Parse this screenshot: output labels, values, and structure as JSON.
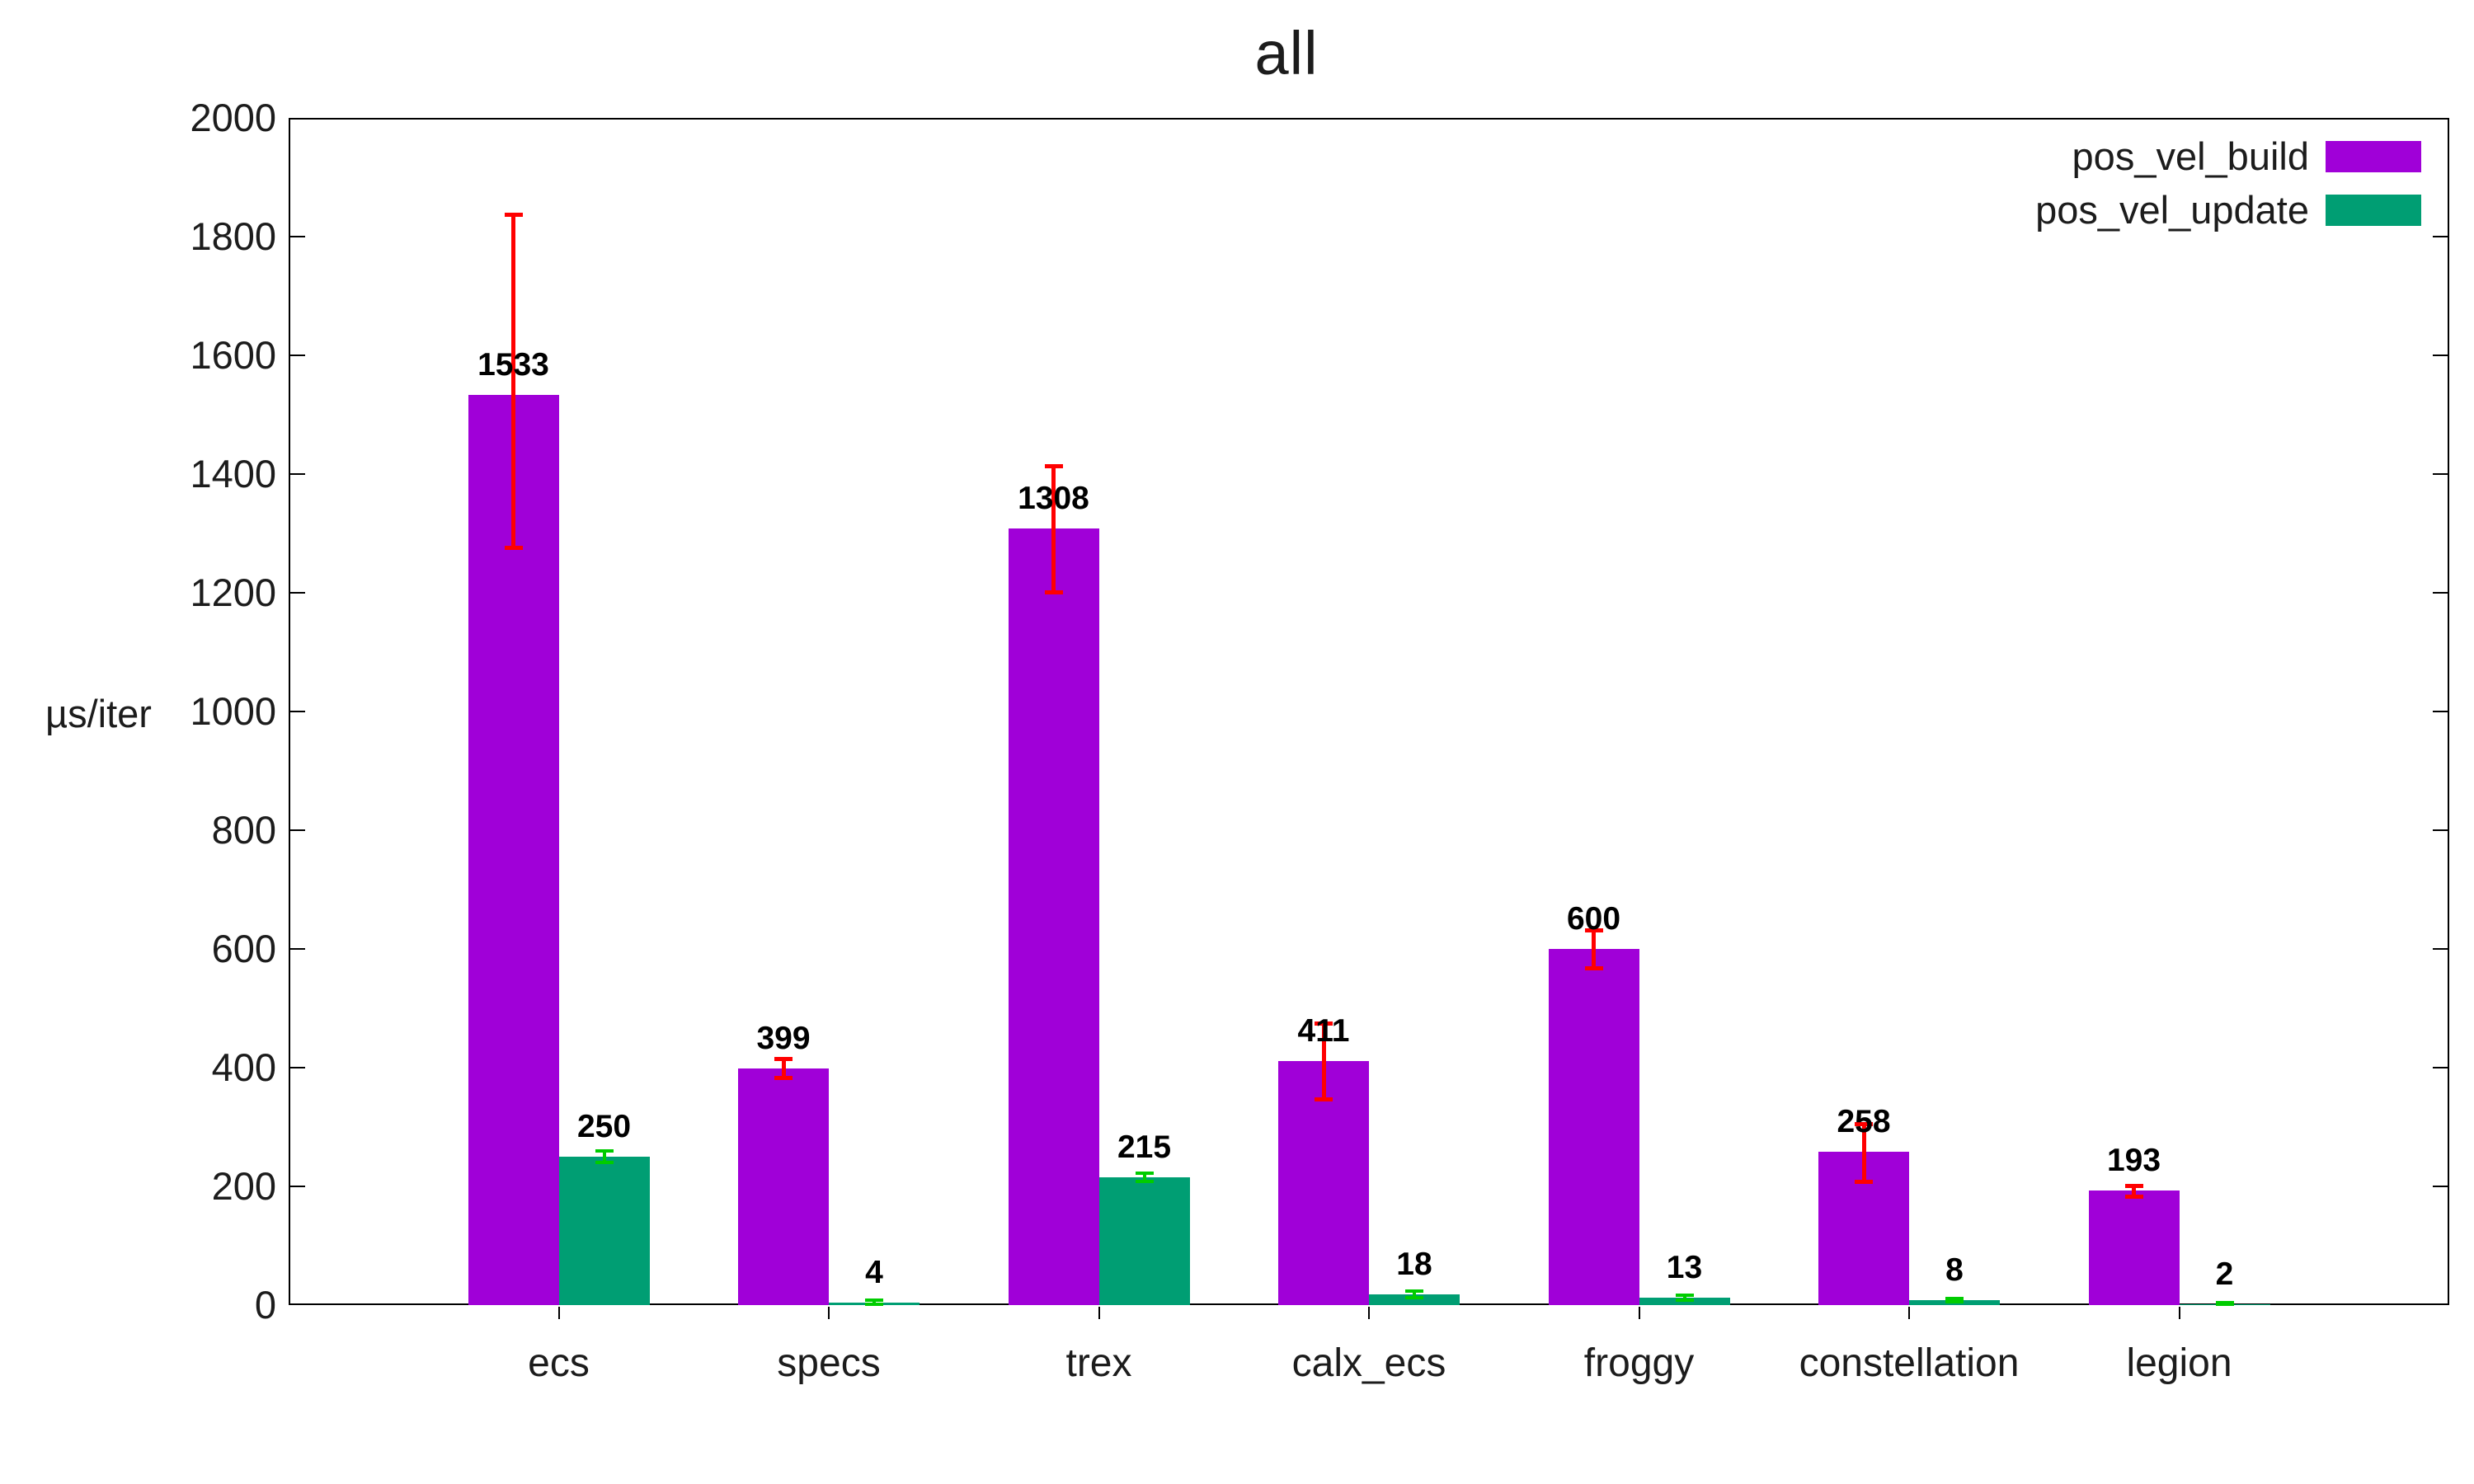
{
  "title": "all",
  "y_axis": {
    "label": "µs/iter",
    "ticks": [
      0,
      200,
      400,
      600,
      800,
      1000,
      1200,
      1400,
      1600,
      1800,
      2000
    ]
  },
  "legend": {
    "position": "top-right",
    "entries": [
      {
        "label": "pos_vel_build",
        "color": "#a000d8"
      },
      {
        "label": "pos_vel_update",
        "color": "#009e73"
      }
    ]
  },
  "chart_data": {
    "type": "bar",
    "title": "all",
    "xlabel": "",
    "ylabel": "µs/iter",
    "ylim": [
      0,
      2000
    ],
    "grid": false,
    "legend_position": "top-right",
    "categories": [
      "ecs",
      "specs",
      "trex",
      "calx_ecs",
      "froggy",
      "constellation",
      "legion"
    ],
    "series": [
      {
        "name": "pos_vel_build",
        "color": "#a000d8",
        "error_color": "#ff0000",
        "values": [
          1533,
          399,
          1308,
          411,
          600,
          258,
          193
        ],
        "errors": [
          [
            1276,
            1838
          ],
          [
            383,
            415
          ],
          [
            1201,
            1414
          ],
          [
            347,
            475
          ],
          [
            568,
            632
          ],
          [
            208,
            306
          ],
          [
            184,
            202
          ]
        ]
      },
      {
        "name": "pos_vel_update",
        "color": "#009e73",
        "error_color": "#00cc00",
        "values": [
          250,
          4,
          215,
          18,
          13,
          8,
          2
        ],
        "errors": [
          [
            240,
            260
          ],
          [
            1,
            8
          ],
          [
            208,
            222
          ],
          [
            13,
            24
          ],
          [
            9,
            17
          ],
          [
            5,
            11
          ],
          [
            1,
            4
          ]
        ]
      }
    ]
  }
}
